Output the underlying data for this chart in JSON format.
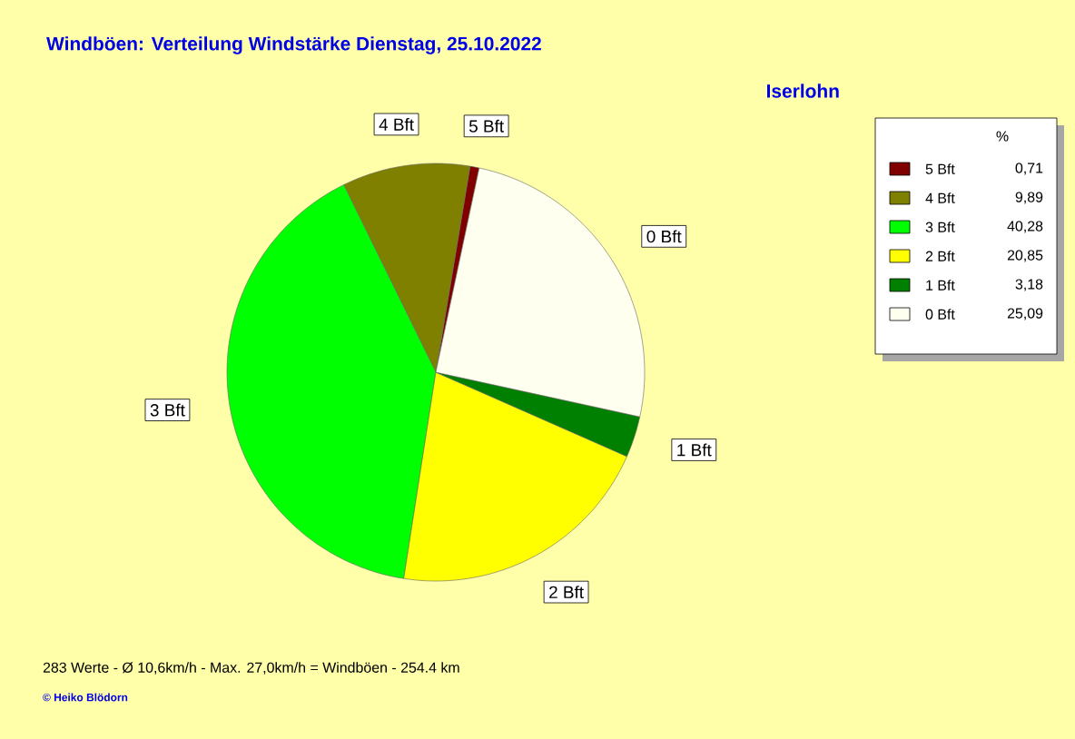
{
  "chart_data": {
    "type": "pie",
    "title": "Windböen: Verteilung Windstärke  Dienstag, 25.10.2022",
    "subtitle": "Iserlohn",
    "legend_title": "%",
    "categories": [
      "5 Bft",
      "4 Bft",
      "3 Bft",
      "2 Bft",
      "1 Bft",
      "0 Bft"
    ],
    "values": [
      0.71,
      9.89,
      40.28,
      20.85,
      3.18,
      25.09
    ],
    "value_labels": [
      "0,71",
      "9,89",
      "40,28",
      "20,85",
      "3,18",
      "25,09"
    ],
    "colors": [
      "#800000",
      "#808000",
      "#00ff00",
      "#ffff00",
      "#008000",
      "#fffff0"
    ],
    "legend": "top right",
    "annotations": [
      "283 Werte   -   Ø 10,6km/h  -  Max. 27,0km/h = Windböen   -   254.4 km",
      "© Heiko Blödorn"
    ]
  }
}
